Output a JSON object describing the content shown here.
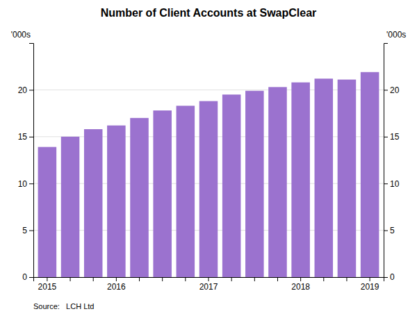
{
  "chart_data": {
    "type": "bar",
    "title": "Number of Client Accounts at SwapClear",
    "ylabel": "'000s",
    "y2label": "'000s",
    "source": "Source:   LCH Ltd",
    "categories": [
      "2015",
      null,
      null,
      "2016",
      null,
      null,
      null,
      "2017",
      null,
      null,
      null,
      "2018",
      null,
      null,
      "2019"
    ],
    "values": [
      13.9,
      15.0,
      15.8,
      16.2,
      17.0,
      17.8,
      18.3,
      18.8,
      19.5,
      19.9,
      20.3,
      20.8,
      21.2,
      21.1,
      21.9
    ],
    "color": "#9b72cf",
    "ylim": [
      0,
      25
    ],
    "yticks": [
      0,
      5,
      10,
      15,
      20
    ],
    "y2lim": [
      0,
      25
    ],
    "y2ticks": [
      0,
      5,
      10,
      15,
      20
    ],
    "grid": true
  }
}
